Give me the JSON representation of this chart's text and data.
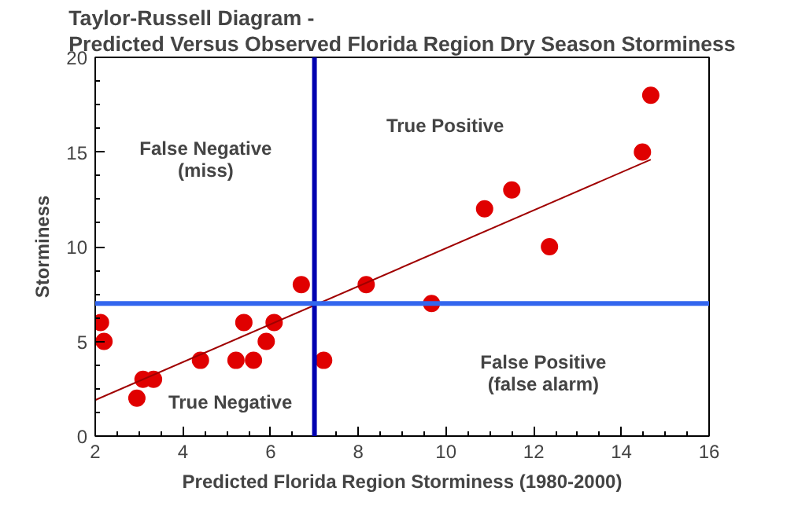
{
  "chart_data": {
    "type": "scatter",
    "title": "Taylor-Russell Diagram -\nPredicted Versus Observed Florida Region Dry Season Storminess",
    "xlabel": "Predicted Florida Region Storminess (1980-2000)",
    "ylabel": "Storminess",
    "series": [
      {
        "color": "#e00000",
        "marker": "circle",
        "x": [
          2.12,
          2.2,
          2.95,
          3.09,
          3.33,
          4.4,
          5.21,
          5.39,
          5.61,
          5.9,
          6.08,
          6.7,
          7.21,
          8.18,
          9.67,
          10.88,
          11.5,
          12.36,
          14.48,
          14.67
        ],
        "values": [
          6,
          5,
          2,
          3,
          3,
          4,
          4,
          6,
          4,
          5,
          6,
          8,
          4,
          8,
          7,
          12,
          13,
          10,
          15,
          18
        ]
      },
      {
        "type": "line",
        "color": "#a00000",
        "x": [
          2,
          14.67
        ],
        "values": [
          1.9,
          14.6
        ]
      }
    ],
    "xlim": [
      2,
      16
    ],
    "xticks": [
      2,
      4,
      6,
      8,
      10,
      12,
      14,
      16
    ],
    "ylim": [
      0,
      20
    ],
    "yticks": [
      0,
      5,
      10,
      15,
      20
    ],
    "grid": false,
    "ref_lines": [
      {
        "axis": "x",
        "value": 7,
        "color": "#0000b0"
      },
      {
        "axis": "y",
        "value": 7,
        "color": "#3366ee"
      }
    ],
    "annotations": [
      "False Negative\n(miss)",
      "True Positive",
      "True Negative",
      "False Positive\n(false alarm)"
    ]
  }
}
